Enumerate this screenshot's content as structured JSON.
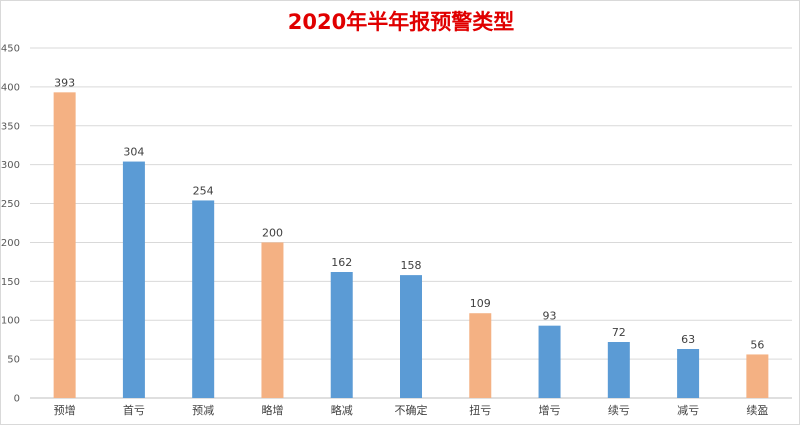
{
  "chart_data": {
    "type": "bar",
    "title": "2020年半年报预警类型",
    "categories": [
      "预增",
      "首亏",
      "预减",
      "略增",
      "略减",
      "不确定",
      "扭亏",
      "增亏",
      "续亏",
      "减亏",
      "续盈"
    ],
    "values": [
      393,
      304,
      254,
      200,
      162,
      158,
      109,
      93,
      72,
      63,
      56
    ],
    "bar_colors": [
      "#f4b183",
      "#5b9bd5",
      "#5b9bd5",
      "#f4b183",
      "#5b9bd5",
      "#5b9bd5",
      "#f4b183",
      "#5b9bd5",
      "#5b9bd5",
      "#5b9bd5",
      "#f4b183"
    ],
    "ylim": [
      0,
      450
    ],
    "yticks": [
      0,
      50,
      100,
      150,
      200,
      250,
      300,
      350,
      400,
      450
    ],
    "grid": true,
    "legend": false,
    "data_labels": true,
    "xlabel": "",
    "ylabel": ""
  },
  "colors": {
    "title": "#e00000",
    "grid": "#d9d9d9",
    "positive": "#f4b183",
    "negative": "#5b9bd5"
  }
}
